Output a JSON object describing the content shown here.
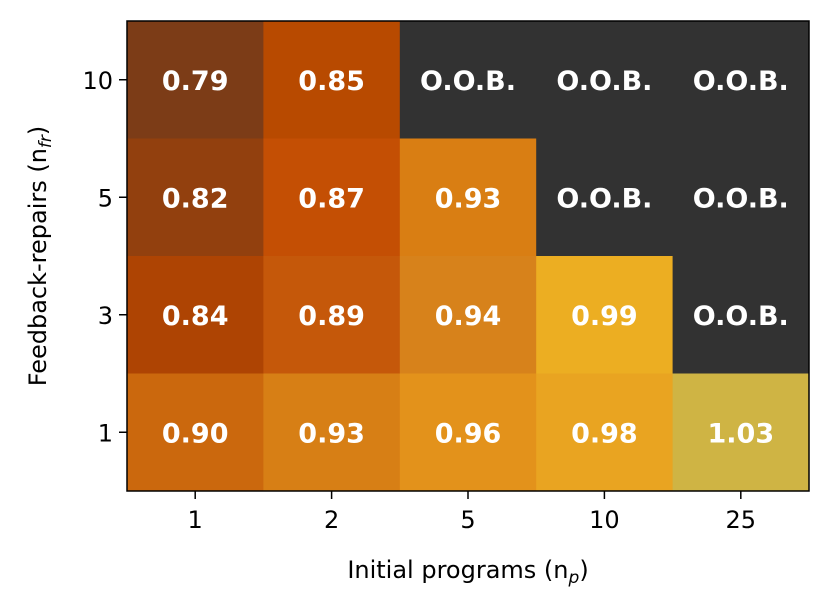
{
  "chart_data": {
    "type": "heatmap",
    "title": "",
    "xlabel": "Initial programs (n",
    "xlabel_sub": "p",
    "xlabel_end": ")",
    "ylabel": "Feedback-repairs (n",
    "ylabel_sub": "fr",
    "ylabel_end": ")",
    "x_categories": [
      "1",
      "2",
      "5",
      "10",
      "25"
    ],
    "y_categories": [
      "10",
      "5",
      "3",
      "1"
    ],
    "oob_label": "O.O.B.",
    "oob_color": "#323232",
    "values": [
      [
        0.79,
        0.85,
        null,
        null,
        null
      ],
      [
        0.82,
        0.87,
        0.93,
        null,
        null
      ],
      [
        0.84,
        0.89,
        0.94,
        0.99,
        null
      ],
      [
        0.9,
        0.93,
        0.96,
        0.98,
        1.03
      ]
    ],
    "labels": [
      [
        "0.79",
        "0.85",
        "O.O.B.",
        "O.O.B.",
        "O.O.B."
      ],
      [
        "0.82",
        "0.87",
        "0.93",
        "O.O.B.",
        "O.O.B."
      ],
      [
        "0.84",
        "0.89",
        "0.94",
        "0.99",
        "O.O.B."
      ],
      [
        "0.90",
        "0.93",
        "0.96",
        "0.98",
        "1.03"
      ]
    ],
    "colors": [
      [
        "#7c3c17",
        "#b84a00",
        "#323232",
        "#323232",
        "#323232"
      ],
      [
        "#92400e",
        "#c44f04",
        "#d97e13",
        "#323232",
        "#323232"
      ],
      [
        "#ae4403",
        "#c5580a",
        "#d7821b",
        "#ecae22",
        "#323232"
      ],
      [
        "#cb680d",
        "#d77f15",
        "#e3921b",
        "#e9a421",
        "#cfb444"
      ]
    ]
  }
}
